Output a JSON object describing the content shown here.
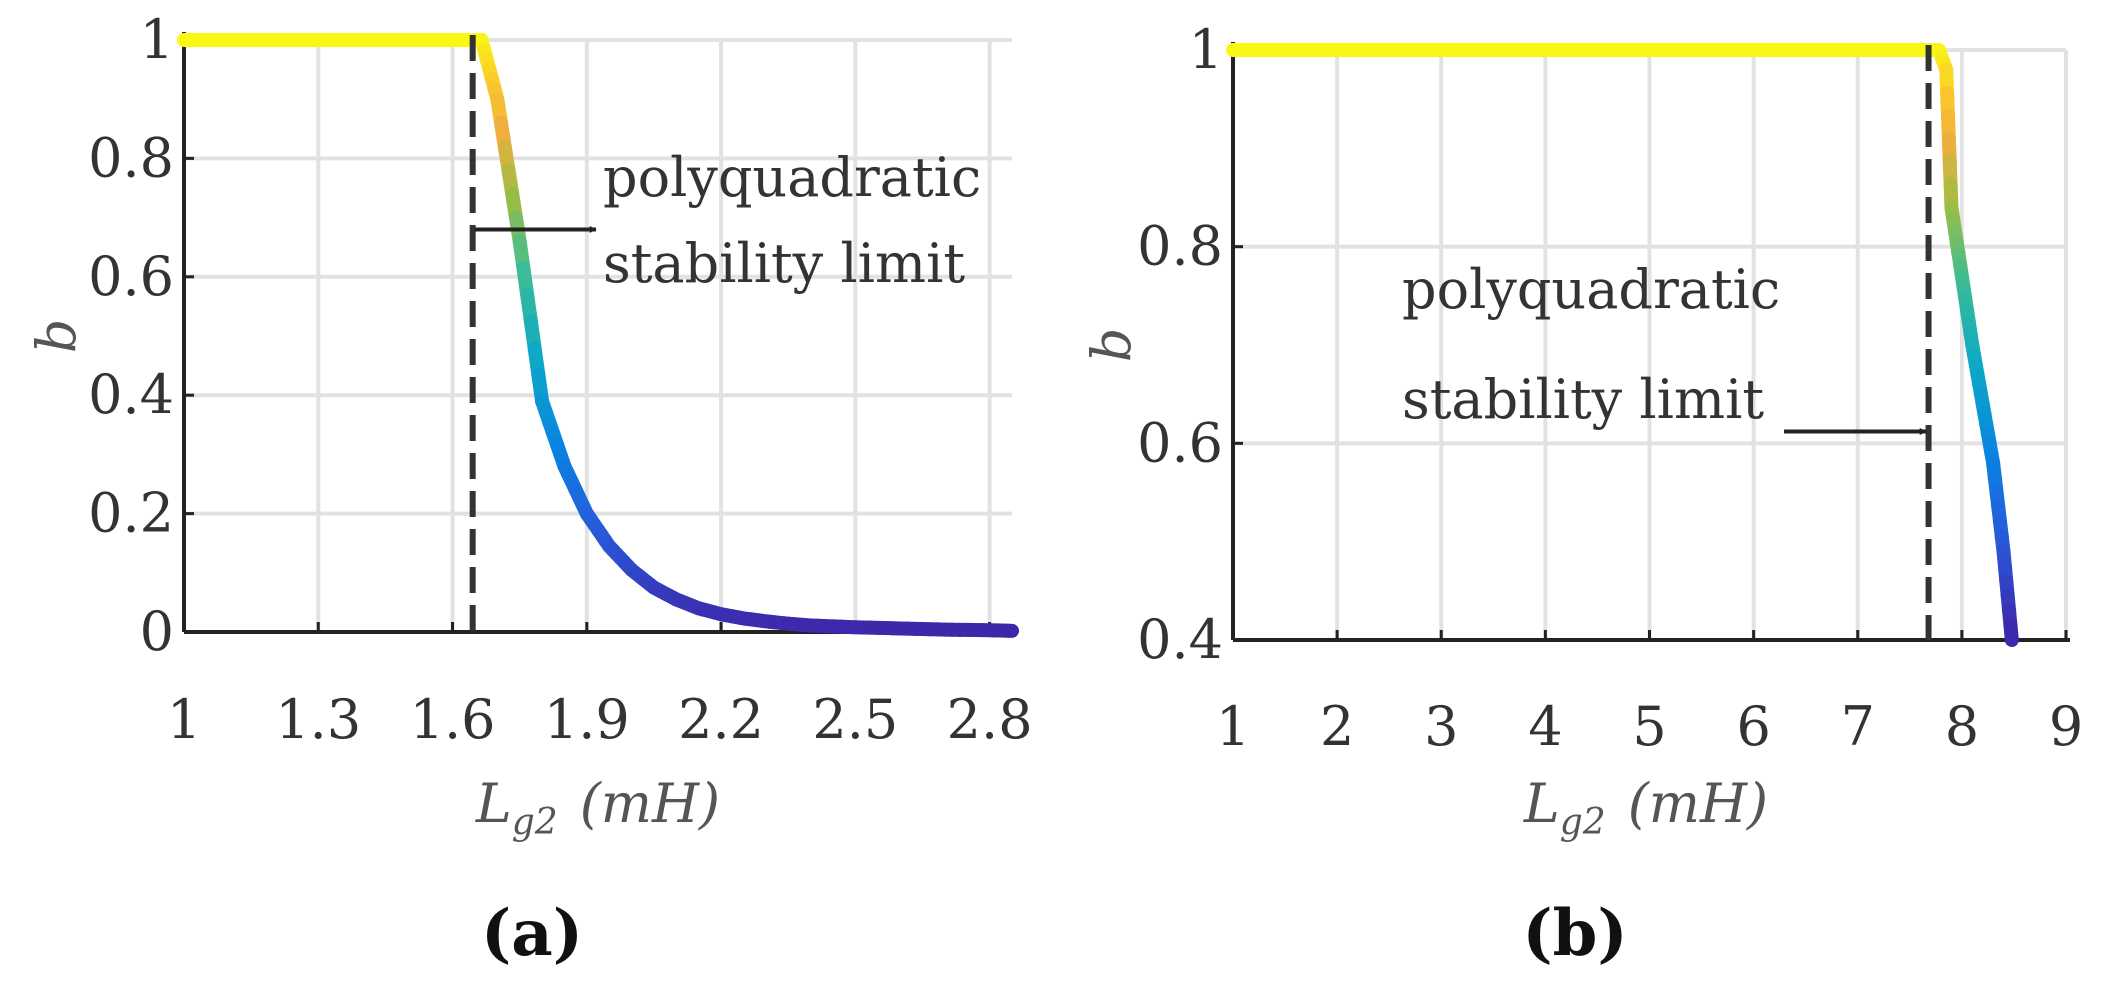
{
  "chart_data": [
    {
      "type": "line",
      "panel_label": "(a)",
      "xlabel": "L_g2 (mH)",
      "xlabel_main": "L",
      "xlabel_sub": "g2",
      "xlabel_units": "(mH)",
      "ylabel": "b",
      "xlim": [
        1,
        2.85
      ],
      "ylim": [
        0,
        1
      ],
      "xticks": [
        1,
        1.3,
        1.6,
        1.9,
        2.2,
        2.5,
        2.8
      ],
      "xtick_labels": [
        "1",
        "1.3",
        "1.6",
        "1.9",
        "2.2",
        "2.5",
        "2.8"
      ],
      "yticks": [
        0,
        0.2,
        0.4,
        0.6,
        0.8,
        1
      ],
      "ytick_labels": [
        "0",
        "0.2",
        "0.4",
        "0.6",
        "0.8",
        "1"
      ],
      "grid": true,
      "series": [
        {
          "name": "b",
          "x": [
            1.0,
            1.2,
            1.4,
            1.6,
            1.665,
            1.7,
            1.75,
            1.8,
            1.85,
            1.9,
            1.95,
            2.0,
            2.05,
            2.1,
            2.15,
            2.2,
            2.25,
            2.3,
            2.35,
            2.4,
            2.5,
            2.6,
            2.7,
            2.8,
            2.85
          ],
          "y": [
            1.0,
            1.0,
            1.0,
            1.0,
            1.0,
            0.9,
            0.66,
            0.39,
            0.28,
            0.2,
            0.145,
            0.105,
            0.075,
            0.055,
            0.04,
            0.03,
            0.023,
            0.018,
            0.014,
            0.011,
            0.008,
            0.006,
            0.004,
            0.003,
            0.002
          ]
        }
      ],
      "vline": {
        "x": 1.645,
        "style": "dashed"
      },
      "annotation": {
        "lines": [
          "polyquadratic",
          "stability limit"
        ],
        "arrow_direction": "right",
        "arrow_y": 0.68
      }
    },
    {
      "type": "line",
      "panel_label": "(b)",
      "xlabel": "L_g2 (mH)",
      "xlabel_main": "L",
      "xlabel_sub": "g2",
      "xlabel_units": "(mH)",
      "ylabel": "b",
      "xlim": [
        1,
        9
      ],
      "ylim": [
        0.4,
        1
      ],
      "xticks": [
        1,
        2,
        3,
        4,
        5,
        6,
        7,
        8,
        9
      ],
      "xtick_labels": [
        "1",
        "2",
        "3",
        "4",
        "5",
        "6",
        "7",
        "8",
        "9"
      ],
      "yticks": [
        0.4,
        0.6,
        0.8,
        1
      ],
      "ytick_labels": [
        "0.4",
        "0.6",
        "0.8",
        "1"
      ],
      "grid": true,
      "series": [
        {
          "name": "b",
          "x": [
            1.0,
            3.0,
            5.0,
            7.0,
            7.78,
            7.85,
            7.9,
            8.0,
            8.1,
            8.2,
            8.3,
            8.4,
            8.48
          ],
          "y": [
            1.0,
            1.0,
            1.0,
            1.0,
            1.0,
            0.98,
            0.84,
            0.77,
            0.7,
            0.64,
            0.58,
            0.49,
            0.4
          ]
        }
      ],
      "vline": {
        "x": 7.68,
        "style": "dashed"
      },
      "annotation": {
        "lines": [
          "polyquadratic",
          "stability limit"
        ],
        "arrow_direction": "right",
        "arrow_y": 0.612
      }
    }
  ]
}
